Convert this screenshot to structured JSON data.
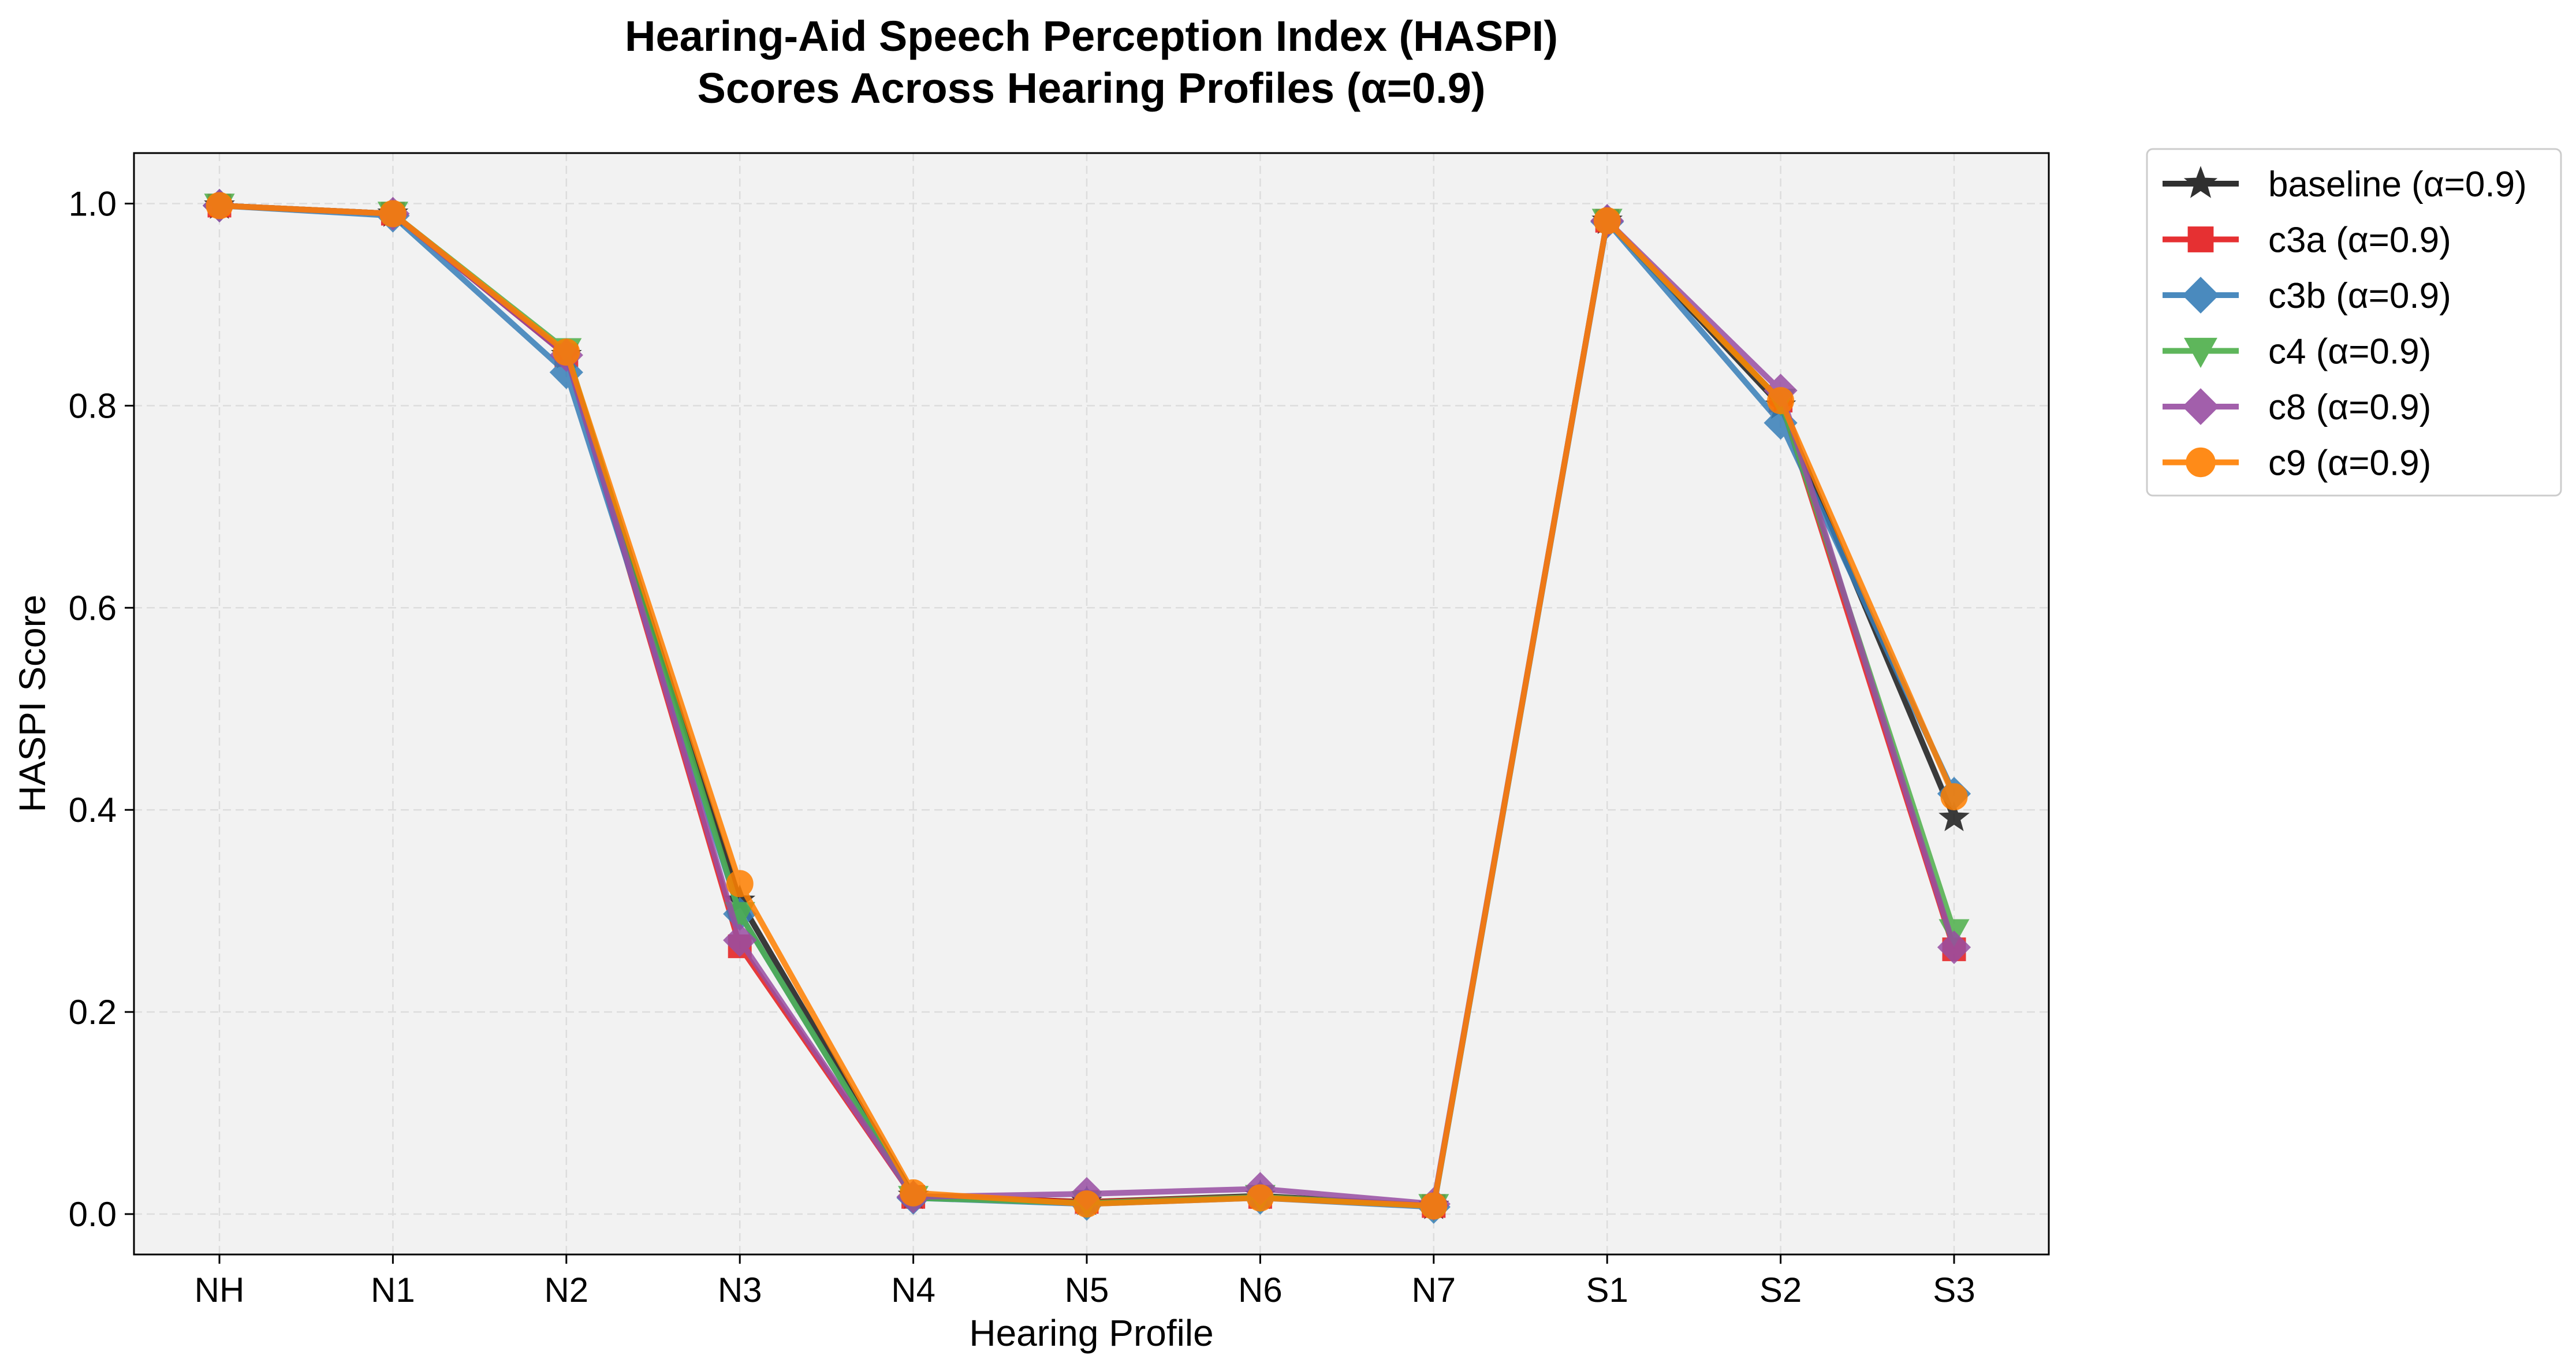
{
  "chart_data": {
    "type": "line",
    "title": "Hearing-Aid Speech Perception Index (HASPI)",
    "subtitle": "Scores Across Hearing Profiles (α=0.9)",
    "xlabel": "Hearing Profile",
    "ylabel": "HASPI Score",
    "categories": [
      "NH",
      "N1",
      "N2",
      "N3",
      "N4",
      "N5",
      "N6",
      "N7",
      "S1",
      "S2",
      "S3"
    ],
    "ylim": [
      -0.04,
      1.05
    ],
    "yticks": [
      "0.0",
      "0.2",
      "0.4",
      "0.6",
      "0.8",
      "1.0"
    ],
    "grid": true,
    "legend_position": "outside-top-right",
    "series": [
      {
        "name": "baseline (α=0.9)",
        "color": "#1a1a1a",
        "marker": "star",
        "values": [
          0.998,
          0.99,
          0.85,
          0.31,
          0.018,
          0.012,
          0.018,
          0.008,
          0.983,
          0.8,
          0.392
        ]
      },
      {
        "name": "c3a (α=0.9)",
        "color": "#e41a1c",
        "marker": "square",
        "values": [
          0.998,
          0.99,
          0.85,
          0.265,
          0.017,
          0.012,
          0.017,
          0.008,
          0.983,
          0.805,
          0.262
        ]
      },
      {
        "name": "c3b (α=0.9)",
        "color": "#377eb8",
        "marker": "diamond",
        "values": [
          0.998,
          0.988,
          0.833,
          0.297,
          0.016,
          0.01,
          0.016,
          0.007,
          0.982,
          0.783,
          0.416
        ]
      },
      {
        "name": "c4 (α=0.9)",
        "color": "#4daf4a",
        "marker": "triangle-down",
        "values": [
          0.998,
          0.99,
          0.855,
          0.297,
          0.016,
          0.011,
          0.017,
          0.008,
          0.983,
          0.805,
          0.28
        ]
      },
      {
        "name": "c8 (α=0.9)",
        "color": "#984ea3",
        "marker": "diamond",
        "values": [
          0.998,
          0.99,
          0.85,
          0.271,
          0.017,
          0.02,
          0.025,
          0.01,
          0.983,
          0.815,
          0.264
        ]
      },
      {
        "name": "c9 (α=0.9)",
        "color": "#ff7f00",
        "marker": "circle",
        "values": [
          0.998,
          0.99,
          0.853,
          0.327,
          0.021,
          0.01,
          0.016,
          0.008,
          0.983,
          0.805,
          0.413
        ]
      }
    ]
  }
}
